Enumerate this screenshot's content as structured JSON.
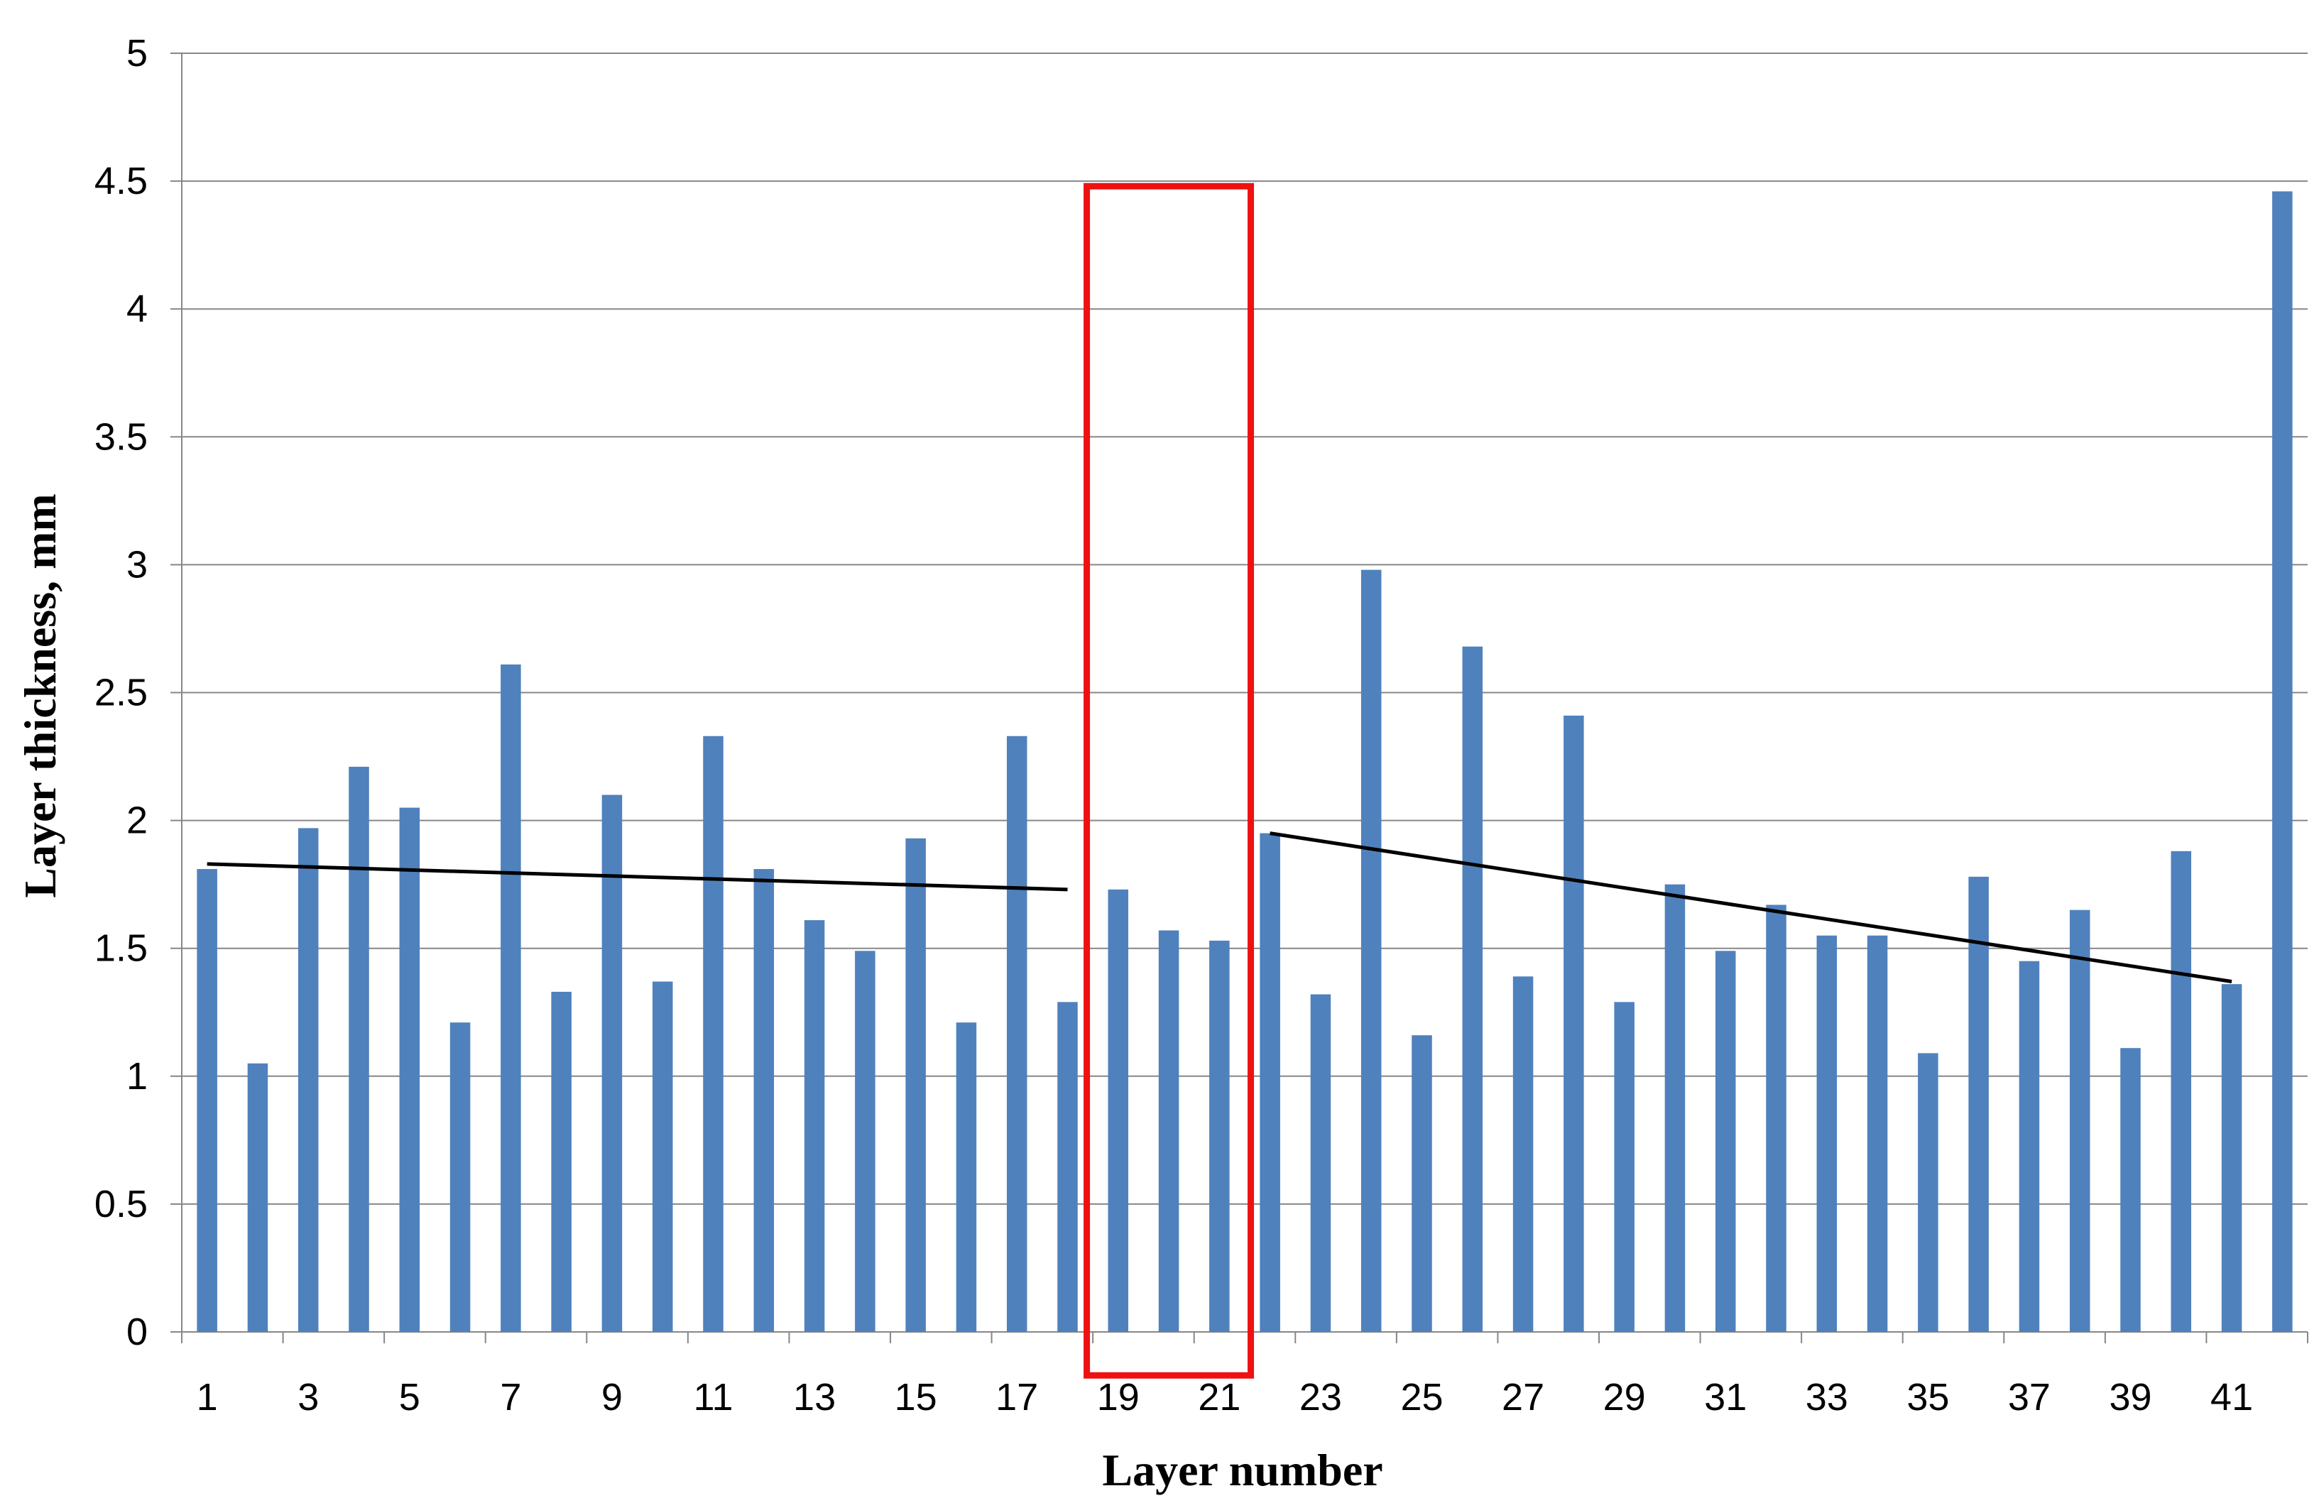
{
  "chart_data": {
    "type": "bar",
    "title": "",
    "xlabel": "Layer number",
    "ylabel": "Layer thickness, mm",
    "ylim": [
      0,
      5
    ],
    "y_ticks": [
      "0",
      "0.5",
      "1",
      "1.5",
      "2",
      "2.5",
      "3",
      "3.5",
      "4",
      "4.5",
      "5"
    ],
    "grid": "horizontal",
    "legend": "none",
    "categories": [
      "1",
      "2",
      "3",
      "4",
      "5",
      "6",
      "7",
      "8",
      "9",
      "10",
      "11",
      "12",
      "13",
      "14",
      "15",
      "16",
      "17",
      "18",
      "19",
      "20",
      "21",
      "22",
      "23",
      "24",
      "25",
      "26",
      "27",
      "28",
      "29",
      "30",
      "31",
      "32",
      "33",
      "34",
      "35",
      "36",
      "37",
      "38",
      "39",
      "40",
      "41",
      "42"
    ],
    "x_tick_labels_shown": [
      "1",
      "3",
      "5",
      "7",
      "9",
      "11",
      "13",
      "15",
      "17",
      "19",
      "21",
      "23",
      "25",
      "27",
      "29",
      "31",
      "33",
      "35",
      "37",
      "39",
      "41"
    ],
    "series": [
      {
        "values": [
          1.81,
          1.05,
          1.97,
          2.21,
          2.05,
          1.21,
          2.61,
          1.33,
          2.1,
          1.37,
          2.33,
          1.81,
          1.61,
          1.49,
          1.93,
          1.21,
          2.33,
          1.29,
          1.73,
          1.57,
          1.53,
          1.95,
          1.32,
          2.98,
          1.16,
          2.68,
          1.39,
          2.41,
          1.29,
          1.75,
          1.49,
          1.67,
          1.55,
          1.55,
          1.09,
          1.78,
          1.45,
          1.65,
          1.11,
          1.88,
          1.36,
          4.46
        ]
      }
    ],
    "trendlines": [
      {
        "from": {
          "layer": 1,
          "value": 1.83
        },
        "to": {
          "layer": 18,
          "value": 1.73
        }
      },
      {
        "from": {
          "layer": 22,
          "value": 1.95
        },
        "to": {
          "layer": 41,
          "value": 1.37
        }
      }
    ],
    "highlight_box": {
      "from_layer": 19,
      "to_layer": 21,
      "y_top": 4.48,
      "y_bottom": -0.17
    },
    "colors": {
      "bar": "#4F81BD",
      "grid": "#878787",
      "trendline": "#000000",
      "highlight": "#EE1111"
    }
  }
}
